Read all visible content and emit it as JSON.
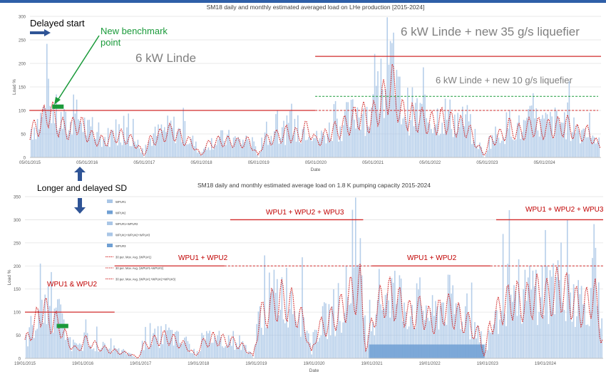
{
  "colors": {
    "bar": "#a9c6e6",
    "bar_dark": "#6f9fd3",
    "avg_line": "#d22b2b",
    "ref_red": "#d22b2b",
    "ref_green": "#1a9a3a",
    "blue_arrow": "#2f5496",
    "green_text": "#1a9a3a",
    "grey_text": "#7f7f7f",
    "red_text": "#c00000",
    "axis_text": "#595959"
  },
  "chart_data": [
    {
      "type": "bar",
      "title": "SM18 daily and monthly estimated averaged load on LHe production [2015-2024]",
      "xlabel": "Date",
      "ylabel": "Load %",
      "ylim": [
        0,
        300
      ],
      "yticks": [
        "0",
        "50",
        "100",
        "150",
        "200",
        "250",
        "300"
      ],
      "xticks": [
        "05/01/2015",
        "05/01/2016",
        "05/01/2017",
        "05/01/2018",
        "05/01/2019",
        "05/01/2020",
        "05/01/2021",
        "05/01/2022",
        "05/01/2023",
        "05/01/2024"
      ],
      "x_range": [
        2015.01,
        2025.0
      ],
      "grid": true,
      "monthly_avg": [
        [
          2015.0,
          60
        ],
        [
          2015.2,
          85
        ],
        [
          2015.35,
          120
        ],
        [
          2015.5,
          80
        ],
        [
          2015.7,
          65
        ],
        [
          2015.85,
          90
        ],
        [
          2016.0,
          60
        ],
        [
          2016.15,
          45
        ],
        [
          2016.3,
          40
        ],
        [
          2016.5,
          55
        ],
        [
          2016.7,
          50
        ],
        [
          2016.9,
          30
        ],
        [
          2017.0,
          5
        ],
        [
          2017.1,
          40
        ],
        [
          2017.3,
          55
        ],
        [
          2017.5,
          65
        ],
        [
          2017.7,
          45
        ],
        [
          2017.85,
          35
        ],
        [
          2018.0,
          5
        ],
        [
          2018.1,
          30
        ],
        [
          2018.3,
          40
        ],
        [
          2018.5,
          40
        ],
        [
          2018.7,
          35
        ],
        [
          2018.85,
          40
        ],
        [
          2019.0,
          5
        ],
        [
          2019.1,
          40
        ],
        [
          2019.3,
          50
        ],
        [
          2019.5,
          60
        ],
        [
          2019.7,
          55
        ],
        [
          2019.9,
          75
        ],
        [
          2020.0,
          40
        ],
        [
          2020.1,
          45
        ],
        [
          2020.25,
          60
        ],
        [
          2020.4,
          70
        ],
        [
          2020.6,
          85
        ],
        [
          2020.8,
          110
        ],
        [
          2020.95,
          90
        ],
        [
          2021.1,
          120
        ],
        [
          2021.25,
          160
        ],
        [
          2021.35,
          180
        ],
        [
          2021.5,
          110
        ],
        [
          2021.7,
          100
        ],
        [
          2021.9,
          90
        ],
        [
          2022.05,
          85
        ],
        [
          2022.25,
          95
        ],
        [
          2022.45,
          80
        ],
        [
          2022.65,
          75
        ],
        [
          2022.8,
          40
        ],
        [
          2022.95,
          5
        ],
        [
          2023.05,
          40
        ],
        [
          2023.25,
          55
        ],
        [
          2023.4,
          75
        ],
        [
          2023.6,
          60
        ],
        [
          2023.8,
          80
        ],
        [
          2024.0,
          70
        ],
        [
          2024.2,
          75
        ],
        [
          2024.4,
          80
        ],
        [
          2024.6,
          60
        ],
        [
          2024.8,
          60
        ],
        [
          2024.95,
          30
        ]
      ],
      "reference_lines": [
        {
          "kind": "solid",
          "color": "red",
          "value": 100,
          "x": [
            2015.0,
            2020.0
          ]
        },
        {
          "kind": "dashed",
          "color": "red",
          "value": 100,
          "x": [
            2020.0,
            2024.95
          ]
        },
        {
          "kind": "solid",
          "color": "red",
          "value": 215,
          "x": [
            2020.0,
            2025.0
          ]
        },
        {
          "kind": "dashed",
          "color": "green",
          "value": 130,
          "x": [
            2020.0,
            2024.95
          ]
        }
      ],
      "benchmark_marker": {
        "x": [
          2015.4,
          2015.6
        ],
        "value": 108
      }
    },
    {
      "type": "bar",
      "title": "SM18 daily and monthly estimated average load on 1.8 K pumping capacity 2015-2024",
      "xlabel": "Date",
      "ylabel": "Load %",
      "ylim": [
        0,
        350
      ],
      "yticks": [
        "0",
        "50",
        "100",
        "150",
        "200",
        "250",
        "300",
        "350"
      ],
      "xticks": [
        "19/01/2015",
        "19/01/2016",
        "19/01/2017",
        "19/01/2018",
        "19/01/2019",
        "19/01/2020",
        "19/01/2021",
        "19/01/2022",
        "19/01/2023",
        "19/01/2024"
      ],
      "x_range": [
        2015.05,
        2025.05
      ],
      "grid": true,
      "legend": [
        "WPU#1",
        "WPU#2",
        "WPU#1+WPU#2",
        "WPU#1+WPU#2+WPU#3",
        "WPU#3",
        "30 per. Mov. Avg. (WPU#1)",
        "30 per. Mov. Avg. (WPU#1+WPU#2)",
        "30 per. Mov. Avg. (WPU#1+WPU#2+WPU#3)"
      ],
      "monthly_avg": [
        [
          2015.05,
          40
        ],
        [
          2015.2,
          80
        ],
        [
          2015.35,
          130
        ],
        [
          2015.5,
          95
        ],
        [
          2015.65,
          85
        ],
        [
          2015.8,
          40
        ],
        [
          2015.95,
          20
        ],
        [
          2016.1,
          45
        ],
        [
          2016.3,
          30
        ],
        [
          2016.5,
          20
        ],
        [
          2016.7,
          15
        ],
        [
          2016.9,
          10
        ],
        [
          2017.0,
          0
        ],
        [
          2017.1,
          30
        ],
        [
          2017.3,
          45
        ],
        [
          2017.5,
          55
        ],
        [
          2017.7,
          40
        ],
        [
          2017.9,
          25
        ],
        [
          2018.0,
          5
        ],
        [
          2018.1,
          35
        ],
        [
          2018.3,
          50
        ],
        [
          2018.5,
          45
        ],
        [
          2018.7,
          40
        ],
        [
          2018.9,
          20
        ],
        [
          2019.0,
          5
        ],
        [
          2019.1,
          100
        ],
        [
          2019.3,
          130
        ],
        [
          2019.5,
          150
        ],
        [
          2019.7,
          130
        ],
        [
          2019.9,
          80
        ],
        [
          2020.0,
          10
        ],
        [
          2020.1,
          70
        ],
        [
          2020.3,
          90
        ],
        [
          2020.5,
          120
        ],
        [
          2020.7,
          160
        ],
        [
          2020.85,
          180
        ],
        [
          2020.95,
          20
        ],
        [
          2021.1,
          120
        ],
        [
          2021.3,
          160
        ],
        [
          2021.5,
          140
        ],
        [
          2021.7,
          110
        ],
        [
          2021.9,
          120
        ],
        [
          2022.1,
          90
        ],
        [
          2022.3,
          130
        ],
        [
          2022.5,
          110
        ],
        [
          2022.7,
          90
        ],
        [
          2022.9,
          60
        ],
        [
          2023.0,
          5
        ],
        [
          2023.1,
          90
        ],
        [
          2023.3,
          130
        ],
        [
          2023.5,
          150
        ],
        [
          2023.7,
          140
        ],
        [
          2023.9,
          160
        ],
        [
          2024.1,
          150
        ],
        [
          2024.3,
          180
        ],
        [
          2024.5,
          150
        ],
        [
          2024.7,
          120
        ],
        [
          2024.9,
          170
        ],
        [
          2025.0,
          60
        ]
      ],
      "reference_lines": [
        {
          "kind": "solid",
          "color": "red",
          "value": 100,
          "x": [
            2015.05,
            2016.6
          ]
        },
        {
          "kind": "solid",
          "color": "red",
          "value": 200,
          "x": [
            2016.6,
            2018.5
          ]
        },
        {
          "kind": "dashed",
          "color": "red",
          "value": 200,
          "x": [
            2018.5,
            2021.05
          ]
        },
        {
          "kind": "solid",
          "color": "red",
          "value": 200,
          "x": [
            2021.05,
            2023.1
          ]
        },
        {
          "kind": "dashed",
          "color": "red",
          "value": 200,
          "x": [
            2023.1,
            2025.05
          ]
        },
        {
          "kind": "solid",
          "color": "red",
          "value": 300,
          "x": [
            2018.6,
            2020.9
          ]
        },
        {
          "kind": "solid",
          "color": "red",
          "value": 300,
          "x": [
            2023.2,
            2025.05
          ]
        }
      ],
      "wpu3_block": {
        "x": [
          2021.0,
          2023.0
        ],
        "value": 30
      },
      "benchmark_marker": {
        "x": [
          2015.6,
          2015.8
        ],
        "value": 70
      }
    }
  ],
  "annotations": {
    "delayed_start": "Delayed start",
    "new_benchmark_line1": "New benchmark",
    "new_benchmark_line2": "point",
    "linde_6kw": "6 kW Linde",
    "linde_35": "6 kW Linde + new 35 g/s liquefier",
    "linde_10": "6 kW Linde + new 10 g/s liquefier",
    "longer_delayed_sd": "Longer and delayed SD",
    "wpu1_and_wpu2": "WPU1 & WPU2",
    "wpu1_wpu2_a": "WPU1 + WPU2",
    "wpu1_wpu2_b": "WPU1 + WPU2",
    "wpu123_a": "WPU1 + WPU2 + WPU3",
    "wpu123_b": "WPU1 + WPU2 + WPU3"
  }
}
